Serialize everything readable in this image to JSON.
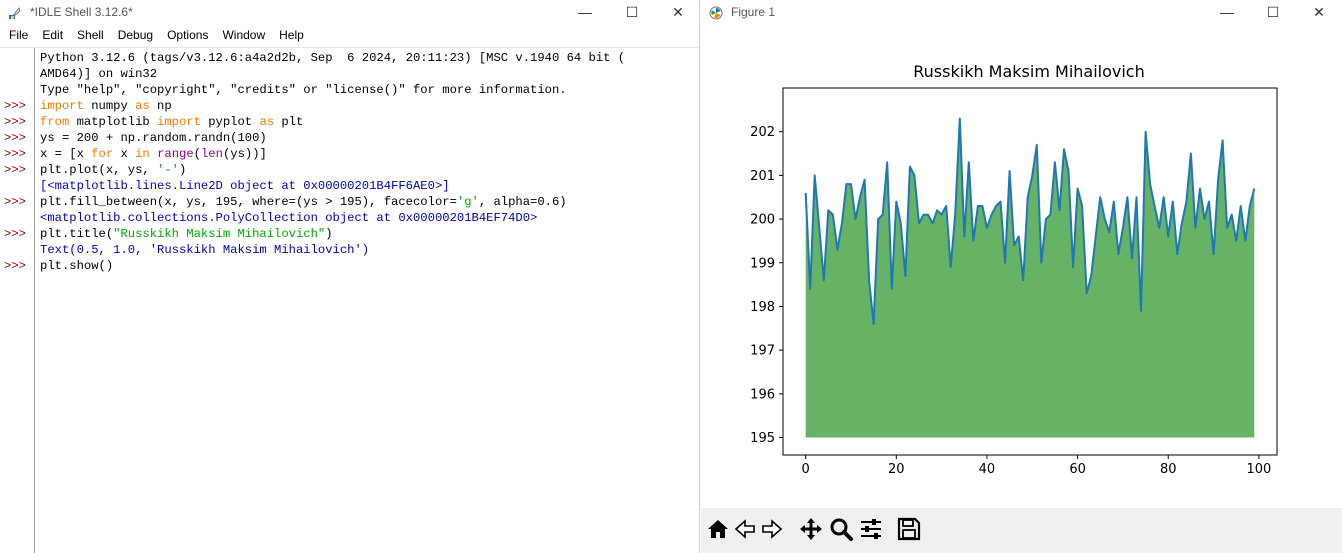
{
  "idle": {
    "title": "*IDLE Shell 3.12.6*",
    "menu": [
      "File",
      "Edit",
      "Shell",
      "Debug",
      "Options",
      "Window",
      "Help"
    ],
    "banner": [
      "Python 3.12.6 (tags/v3.12.6:a4a2d2b, Sep  6 2024, 20:11:23) [MSC v.1940 64 bit (",
      "AMD64)] on win32",
      "Type \"help\", \"copyright\", \"credits\" or \"license()\" for more information."
    ],
    "prompt": ">>>",
    "lines": {
      "l1": {
        "kw1": "import",
        "t1": " numpy ",
        "kw2": "as",
        "t2": " np"
      },
      "l2": {
        "kw1": "from",
        "t1": " matplotlib ",
        "kw2": "import",
        "t2": " pyplot ",
        "kw3": "as",
        "t3": " plt"
      },
      "l3": {
        "t1": "ys = 200 + np.random.randn(100)"
      },
      "l4": {
        "t1": "x = [x ",
        "kw1": "for",
        "t2": " x ",
        "kw2": "in",
        "t3": " ",
        "b1": "range",
        "t4": "(",
        "b2": "len",
        "t5": "(ys))]"
      },
      "l5": {
        "t1": "plt.plot(x, ys, ",
        "s1": "'-'",
        "t2": ")"
      },
      "o5": "[<matplotlib.lines.Line2D object at 0x00000201B4FF6AE0>]",
      "l6": {
        "t1": "plt.fill_between(x, ys, 195, where=(ys > 195), facecolor=",
        "s1": "'g'",
        "t2": ", alpha=0.6)"
      },
      "o6": "<matplotlib.collections.PolyCollection object at 0x00000201B4EF74D0>",
      "l7": {
        "t1": "plt.title(",
        "s1": "\"Russkikh Maksim Mihailovich\"",
        "t2": ")"
      },
      "o7": "Text(0.5, 1.0, 'Russkikh Maksim Mihailovich')",
      "l8": {
        "t1": "plt.show()"
      }
    }
  },
  "figure": {
    "window_title": "Figure 1",
    "colors": {
      "line": "#1f77b4",
      "fill": "#66b366"
    }
  },
  "chart_data": {
    "type": "line",
    "title": "Russkikh Maksim Mihailovich",
    "xlim": [
      -5,
      104
    ],
    "ylim": [
      194.6,
      203.0
    ],
    "xticks": [
      0,
      20,
      40,
      60,
      80,
      100
    ],
    "yticks": [
      195,
      196,
      197,
      198,
      199,
      200,
      201,
      202
    ],
    "fill_baseline": 195,
    "series": [
      {
        "x": [
          0,
          1,
          2,
          3,
          4,
          5,
          6,
          7,
          8,
          9,
          10,
          11,
          12,
          13,
          14,
          15,
          16,
          17,
          18,
          19,
          20,
          21,
          22,
          23,
          24,
          25,
          26,
          27,
          28,
          29,
          30,
          31,
          32,
          33,
          34,
          35,
          36,
          37,
          38,
          39,
          40,
          41,
          42,
          43,
          44,
          45,
          46,
          47,
          48,
          49,
          50,
          51,
          52,
          53,
          54,
          55,
          56,
          57,
          58,
          59,
          60,
          61,
          62,
          63,
          64,
          65,
          66,
          67,
          68,
          69,
          70,
          71,
          72,
          73,
          74,
          75,
          76,
          77,
          78,
          79,
          80,
          81,
          82,
          83,
          84,
          85,
          86,
          87,
          88,
          89,
          90,
          91,
          92,
          93,
          94,
          95,
          96,
          97,
          98,
          99
        ],
        "y": [
          200.6,
          198.4,
          201.0,
          199.8,
          198.6,
          200.2,
          200.1,
          199.3,
          199.9,
          200.8,
          200.8,
          200.0,
          200.5,
          200.9,
          198.6,
          197.6,
          200.0,
          200.1,
          201.3,
          198.4,
          200.4,
          199.9,
          198.7,
          201.2,
          201.0,
          199.9,
          200.1,
          200.1,
          199.9,
          200.2,
          200.1,
          200.3,
          198.9,
          200.1,
          202.3,
          199.6,
          201.3,
          199.5,
          200.3,
          200.3,
          199.8,
          200.1,
          200.3,
          200.4,
          199.0,
          201.1,
          199.4,
          199.6,
          198.6,
          200.5,
          201.0,
          201.7,
          199.0,
          200.0,
          200.1,
          201.3,
          200.2,
          201.6,
          201.1,
          198.9,
          200.7,
          200.3,
          198.3,
          198.7,
          199.6,
          200.5,
          200.0,
          199.7,
          200.4,
          199.2,
          199.8,
          200.5,
          199.1,
          200.5,
          197.9,
          202.0,
          200.8,
          200.3,
          199.8,
          200.5,
          199.6,
          200.4,
          199.2,
          199.9,
          200.4,
          201.5,
          199.8,
          200.7,
          200.0,
          200.4,
          199.2,
          200.9,
          201.8,
          199.8,
          200.1,
          199.5,
          200.3,
          199.5,
          200.3,
          200.7
        ]
      }
    ]
  }
}
